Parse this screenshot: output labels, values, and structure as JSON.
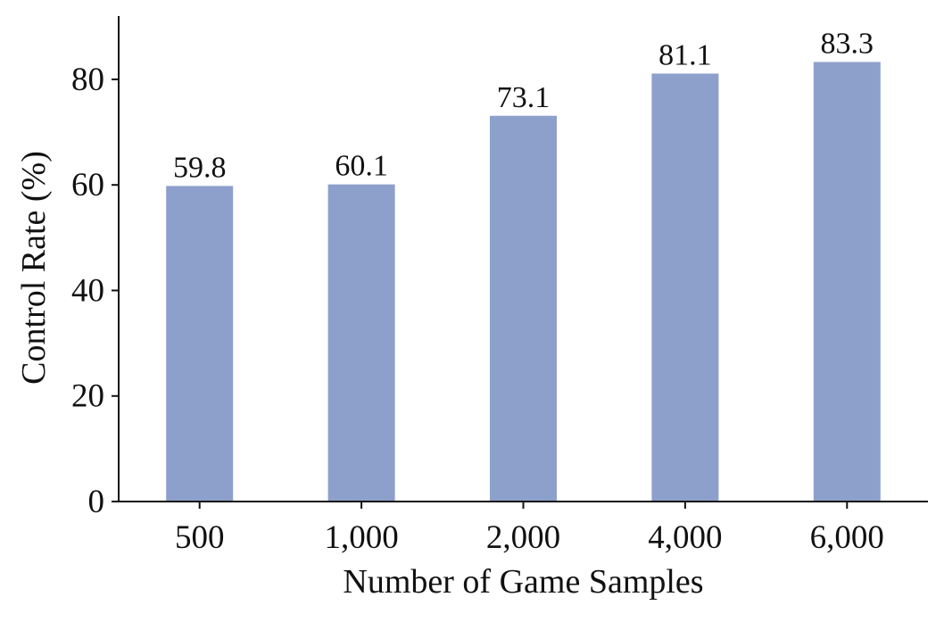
{
  "chart_data": {
    "type": "bar",
    "title": "",
    "xlabel": "Number of Game Samples",
    "ylabel": "Control Rate (%)",
    "categories": [
      "500",
      "1,000",
      "2,000",
      "4,000",
      "6,000"
    ],
    "values": [
      59.8,
      60.1,
      73.1,
      81.1,
      83.3
    ],
    "value_labels": [
      "59.8",
      "60.1",
      "73.1",
      "81.1",
      "83.3"
    ],
    "ylim": [
      0,
      92
    ],
    "yticks": [
      0,
      20,
      40,
      60,
      80
    ],
    "ytick_labels": [
      "0",
      "20",
      "40",
      "60",
      "80"
    ],
    "bar_color": "#8da0cb",
    "grid": false,
    "legend": "none"
  }
}
